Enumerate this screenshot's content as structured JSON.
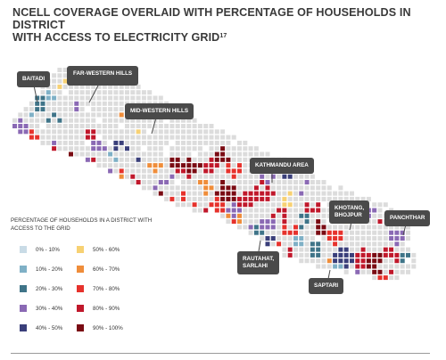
{
  "title_line1": "NCELL COVERAGE OVERLAID WITH PERCENTAGE OF HOUSEHOLDS IN DISTRICT",
  "title_line2": "WITH ACCESS TO ELECTRICITY GRID",
  "title_footnote": "17",
  "legend": {
    "title": "PERCENTAGE OF HOUSEHOLDS IN A DISTRICT WITH ACCESS TO THE GRID",
    "items": [
      {
        "label": "0% - 10%",
        "color": "#c9dbe6"
      },
      {
        "label": "50% - 60%",
        "color": "#f7d173"
      },
      {
        "label": "10% - 20%",
        "color": "#7fb0c6"
      },
      {
        "label": "60% - 70%",
        "color": "#ef8d3a"
      },
      {
        "label": "20% - 30%",
        "color": "#3f7488"
      },
      {
        "label": "70% - 80%",
        "color": "#e6322c"
      },
      {
        "label": "30% - 40%",
        "color": "#8a69b4"
      },
      {
        "label": "80% - 90%",
        "color": "#c0182b"
      },
      {
        "label": "40% - 50%",
        "color": "#3a3f7a"
      },
      {
        "label": "90% - 100%",
        "color": "#7a0b13"
      }
    ]
  },
  "no_coverage_color": "#dcdcdc",
  "callouts": [
    {
      "key": "baitadi",
      "label": "BAITADI"
    },
    {
      "key": "far_western_hills",
      "label": "FAR-WESTERN HILLS"
    },
    {
      "key": "mid_western_hills",
      "label": "MID-WESTERN HILLS"
    },
    {
      "key": "kathmandu_area",
      "label": "KATHMANDU AREA"
    },
    {
      "key": "khotang_bhojpur",
      "label": "KHOTANG,\nBHOJPUR"
    },
    {
      "key": "panchthar",
      "label": "PANCHTHAR"
    },
    {
      "key": "rautahat_sarlahi",
      "label": "RAUTAHAT,\nSARLAHI"
    },
    {
      "key": "saptari",
      "label": "SAPTARI"
    }
  ]
}
